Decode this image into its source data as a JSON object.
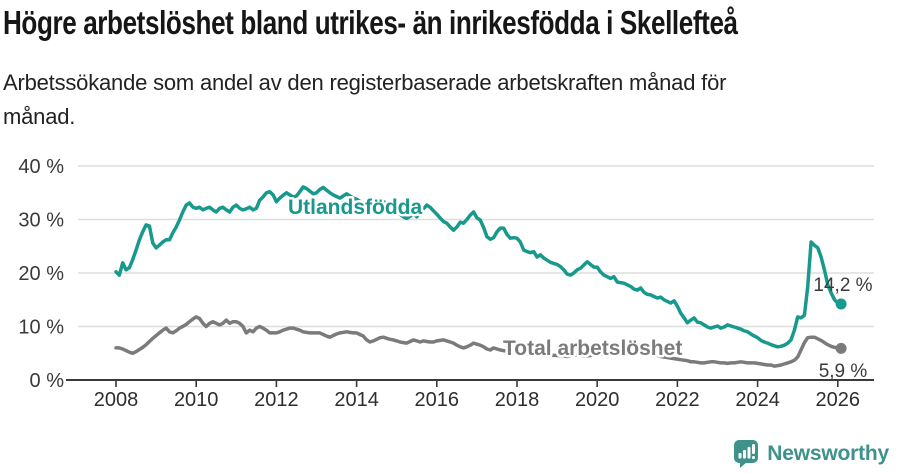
{
  "header": {
    "title": "Högre arbetslöshet bland utrikes- än inrikesfödda i Skellefteå",
    "subtitle_lines": [
      "Arbetssökande som andel av den registerbaserade arbetskraften månad för",
      "månad."
    ]
  },
  "chart_data": {
    "type": "line",
    "unit": "%",
    "frequency": "monthly",
    "x_start": "2008-01",
    "x_end": "2026-02",
    "x_ticks": [
      "2008",
      "2010",
      "2012",
      "2014",
      "2016",
      "2018",
      "2020",
      "2022",
      "2024",
      "2026"
    ],
    "y_tick_values": [
      0,
      10,
      20,
      30,
      40
    ],
    "y_tick_labels": [
      "0 %",
      "10 %",
      "20 %",
      "30 %",
      "40 %"
    ],
    "ylim": [
      0,
      42
    ],
    "grid": true,
    "legend": "inline-labels",
    "colors": {
      "utlandsfodda": "#18998d",
      "total": "#7b7b7b",
      "grid": "#dedede",
      "axis": "#3a3a3a",
      "value_label": "#3a3a3a"
    },
    "series": [
      {
        "name": "Utlandsfödda",
        "color": "#18998d",
        "end_label": "14,2 %",
        "end_value": 14.2,
        "values": [
          20.2,
          19.6,
          21.9,
          20.6,
          21.0,
          22.5,
          24.3,
          26.2,
          27.7,
          29.0,
          28.8,
          25.6,
          24.7,
          25.2,
          25.8,
          26.2,
          26.2,
          27.5,
          28.6,
          29.9,
          31.4,
          32.7,
          33.1,
          32.3,
          32.1,
          32.3,
          31.8,
          32.1,
          32.3,
          31.8,
          31.4,
          32.1,
          32.3,
          31.8,
          31.4,
          32.3,
          32.7,
          32.1,
          31.8,
          32.0,
          32.3,
          31.8,
          32.1,
          33.6,
          34.2,
          35.0,
          35.2,
          34.6,
          33.3,
          34.0,
          34.5,
          35.0,
          34.6,
          34.2,
          34.4,
          35.2,
          36.1,
          35.8,
          35.3,
          34.8,
          35.0,
          35.6,
          36.0,
          35.5,
          35.0,
          34.6,
          34.3,
          34.0,
          34.4,
          34.8,
          34.4,
          34.0,
          33.8,
          33.4,
          33.0,
          32.8,
          33.2,
          32.7,
          32.3,
          32.9,
          33.4,
          32.9,
          32.3,
          31.8,
          31.4,
          31.0,
          30.5,
          30.2,
          30.6,
          31.1,
          30.5,
          31.4,
          32.0,
          32.7,
          32.3,
          31.6,
          31.0,
          30.3,
          29.6,
          29.3,
          28.6,
          28.0,
          28.6,
          29.5,
          29.3,
          30.0,
          30.8,
          31.4,
          30.3,
          29.9,
          28.5,
          26.8,
          26.3,
          26.6,
          27.7,
          28.4,
          28.4,
          27.2,
          26.5,
          26.6,
          26.5,
          25.8,
          24.3,
          24.0,
          23.8,
          24.0,
          23.0,
          23.4,
          22.8,
          22.4,
          22.0,
          21.8,
          21.6,
          21.2,
          20.6,
          19.8,
          19.6,
          20.0,
          20.6,
          20.9,
          21.5,
          22.1,
          21.6,
          21.1,
          21.1,
          20.2,
          19.6,
          19.3,
          19.0,
          19.3,
          18.3,
          18.2,
          18.1,
          17.8,
          17.5,
          17.0,
          16.8,
          17.2,
          16.4,
          16.0,
          15.9,
          15.6,
          15.3,
          15.5,
          15.0,
          14.7,
          14.4,
          14.8,
          13.8,
          12.5,
          11.6,
          10.7,
          11.2,
          11.6,
          10.8,
          10.7,
          10.3,
          9.9,
          9.7,
          9.9,
          10.1,
          9.7,
          9.9,
          10.3,
          10.1,
          9.9,
          9.7,
          9.5,
          9.2,
          9.0,
          8.6,
          8.2,
          7.9,
          7.4,
          7.1,
          6.9,
          6.6,
          6.4,
          6.2,
          6.3,
          6.5,
          6.9,
          7.5,
          9.3,
          11.8,
          11.6,
          12.1,
          17.4,
          25.8,
          25.2,
          24.7,
          23.0,
          20.6,
          17.8,
          16.3,
          15.0,
          14.4,
          14.2
        ]
      },
      {
        "name": "Total arbetslöshet",
        "color": "#7b7b7b",
        "end_label": "5,9 %",
        "end_value": 5.9,
        "values": [
          6.0,
          6.0,
          5.8,
          5.5,
          5.2,
          5.0,
          5.3,
          5.7,
          6.1,
          6.6,
          7.2,
          7.8,
          8.3,
          8.8,
          9.3,
          9.7,
          9.0,
          8.8,
          9.2,
          9.7,
          10.0,
          10.4,
          10.9,
          11.4,
          11.8,
          11.5,
          10.6,
          10.0,
          10.6,
          10.9,
          10.6,
          10.3,
          10.6,
          11.2,
          10.6,
          10.9,
          10.9,
          10.6,
          10.0,
          8.8,
          9.3,
          9.0,
          9.7,
          10.0,
          9.7,
          9.3,
          8.8,
          8.8,
          8.8,
          9.0,
          9.3,
          9.5,
          9.7,
          9.7,
          9.5,
          9.3,
          9.0,
          8.9,
          8.8,
          8.8,
          8.8,
          8.8,
          8.5,
          8.2,
          8.0,
          8.3,
          8.6,
          8.8,
          8.9,
          9.0,
          8.9,
          8.8,
          8.8,
          8.5,
          8.2,
          7.5,
          7.1,
          7.3,
          7.6,
          7.9,
          8.0,
          7.8,
          7.6,
          7.5,
          7.3,
          7.1,
          7.0,
          6.9,
          7.2,
          7.5,
          7.3,
          7.1,
          7.3,
          7.2,
          7.1,
          7.1,
          7.3,
          7.4,
          7.5,
          7.3,
          7.1,
          6.9,
          6.5,
          6.2,
          6.0,
          6.2,
          6.5,
          6.9,
          6.7,
          6.5,
          6.2,
          5.8,
          5.6,
          6.0,
          5.8,
          5.6,
          5.5,
          5.4,
          5.3,
          5.2,
          5.2,
          5.1,
          5.0,
          4.9,
          4.8,
          4.7,
          4.8,
          4.9,
          4.8,
          4.7,
          4.6,
          4.6,
          4.6,
          4.5,
          4.5,
          4.4,
          4.5,
          4.6,
          4.7,
          4.6,
          4.5,
          4.5,
          4.6,
          4.7,
          4.8,
          4.8,
          5.0,
          5.6,
          5.9,
          6.1,
          6.2,
          6.0,
          5.8,
          5.6,
          5.5,
          5.5,
          5.4,
          5.3,
          5.2,
          5.0,
          4.9,
          4.7,
          4.6,
          4.4,
          4.3,
          4.2,
          4.1,
          4.0,
          3.9,
          3.8,
          3.7,
          3.6,
          3.4,
          3.4,
          3.3,
          3.2,
          3.2,
          3.3,
          3.4,
          3.4,
          3.3,
          3.2,
          3.2,
          3.1,
          3.2,
          3.2,
          3.3,
          3.4,
          3.3,
          3.2,
          3.2,
          3.2,
          3.1,
          3.0,
          2.9,
          2.8,
          2.8,
          2.6,
          2.7,
          2.8,
          3.0,
          3.2,
          3.4,
          3.7,
          4.3,
          5.6,
          7.0,
          7.9,
          8.0,
          8.0,
          7.7,
          7.4,
          7.0,
          6.6,
          6.3,
          6.1,
          6.0,
          5.9
        ]
      }
    ]
  },
  "footer": {
    "brand": "Newsworthy",
    "brand_color": "#3f928b",
    "logo_icon": "newsworthy-speech-bubble-bar-chart-icon"
  }
}
